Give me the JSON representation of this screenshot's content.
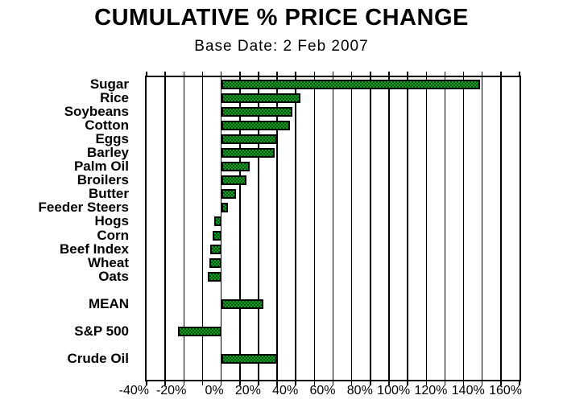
{
  "chart_data": {
    "type": "bar",
    "orientation": "horizontal",
    "title": "CUMULATIVE % PRICE CHANGE",
    "subtitle": "Base Date: 2 Feb 2007",
    "categories": [
      "Sugar",
      "Rice",
      "Soybeans",
      "Cotton",
      "Eggs",
      "Barley",
      "Palm Oil",
      "Broilers",
      "Butter",
      "Feeder Steers",
      "Hogs",
      "Corn",
      "Beef Index",
      "Wheat",
      "Oats",
      "MEAN",
      "S&P 500",
      "Crude Oil"
    ],
    "values": [
      139,
      42.5,
      38,
      37,
      30,
      28.5,
      15.5,
      13.5,
      8,
      3.5,
      -3.5,
      -4.5,
      -6,
      -6.5,
      -7,
      22.5,
      -23,
      30
    ],
    "row_slots": [
      0,
      1,
      2,
      3,
      4,
      5,
      6,
      7,
      8,
      9,
      10,
      11,
      12,
      13,
      14,
      16,
      18,
      20
    ],
    "total_slots": 22,
    "xlabel": "",
    "ylabel": "",
    "xlim": [
      -40,
      160
    ],
    "x_tick_step": 20,
    "gridline_step": 10,
    "x_tick_labels": [
      "-40%",
      "-20%",
      "0%",
      "20%",
      "40%",
      "60%",
      "80%",
      "100%",
      "120%",
      "140%",
      "160%"
    ],
    "grid_on": true,
    "legend": "none",
    "colors": {
      "bar_fill_light": "#00a227",
      "bar_fill_dark": "#0a4f0a",
      "bar_border": "#000000",
      "grid": "#000000",
      "text": "#000000",
      "background": "#ffffff"
    }
  }
}
